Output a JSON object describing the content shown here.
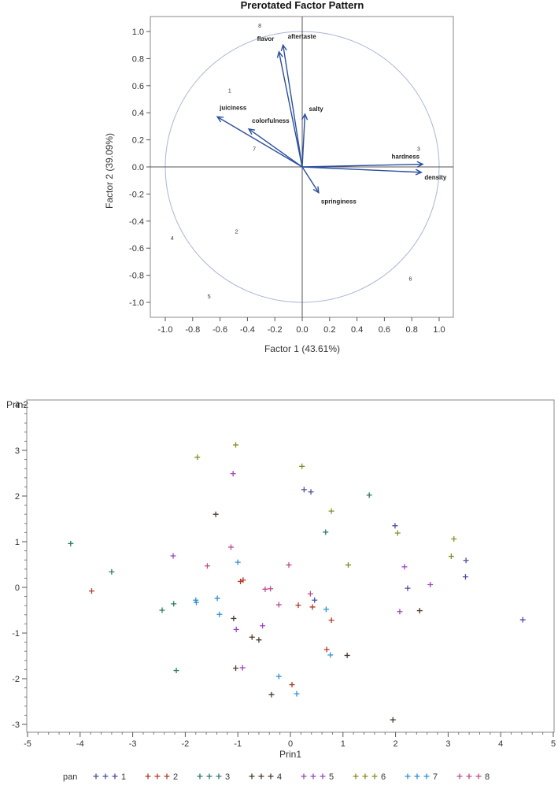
{
  "chart_data": [
    {
      "type": "scatter",
      "title": "Prerotated Factor Pattern",
      "xlabel": "Factor 1 (43.61%)",
      "ylabel": "Factor 2 (39.09%)",
      "xlim": [
        -1.1,
        1.1
      ],
      "ylim": [
        -1.1,
        1.1
      ],
      "xticks": [
        "-1.0",
        "-0.8",
        "-0.6",
        "-0.4",
        "-0.2",
        "0.0",
        "0.2",
        "0.4",
        "0.6",
        "0.8",
        "1.0"
      ],
      "yticks": [
        "1.0",
        "0.8",
        "0.6",
        "0.4",
        "0.2",
        "0.0",
        "-0.2",
        "-0.4",
        "-0.6",
        "-0.8",
        "-1.0"
      ],
      "unit_circle": true,
      "colors": {
        "vector": "#2b4f9e",
        "circle": "#a9b5d6",
        "axis": "#555555"
      },
      "vectors": [
        {
          "label": "aftertaste",
          "x": -0.14,
          "y": 0.9
        },
        {
          "label": "flavor",
          "x": -0.17,
          "y": 0.85
        },
        {
          "label": "salty",
          "x": 0.02,
          "y": 0.39
        },
        {
          "label": "juiciness",
          "x": -0.62,
          "y": 0.37
        },
        {
          "label": "colorfulness",
          "x": -0.39,
          "y": 0.28
        },
        {
          "label": "hardness",
          "x": 0.88,
          "y": 0.02
        },
        {
          "label": "density",
          "x": 0.87,
          "y": -0.04
        },
        {
          "label": "springiness",
          "x": 0.12,
          "y": -0.19
        }
      ],
      "observations": [
        {
          "label": "8",
          "x": -0.31,
          "y": 1.03
        },
        {
          "label": "1",
          "x": -0.53,
          "y": 0.55
        },
        {
          "label": "7",
          "x": -0.35,
          "y": 0.12
        },
        {
          "label": "3",
          "x": 0.85,
          "y": 0.12
        },
        {
          "label": "2",
          "x": -0.48,
          "y": -0.49
        },
        {
          "label": "4",
          "x": -0.95,
          "y": -0.54
        },
        {
          "label": "6",
          "x": 0.79,
          "y": -0.84
        },
        {
          "label": "5",
          "x": -0.68,
          "y": -0.97
        }
      ]
    },
    {
      "type": "scatter",
      "title": "",
      "xlabel": "Prin1",
      "ylabel": "Prin2",
      "xlim": [
        -5,
        5
      ],
      "ylim": [
        -3.1,
        4.1
      ],
      "xticks": [
        "-5",
        "-4",
        "-3",
        "-2",
        "-1",
        "0",
        "1",
        "2",
        "3",
        "4",
        "5"
      ],
      "yticks": [
        "4",
        "3",
        "2",
        "1",
        "0",
        "-1",
        "-2",
        "-3"
      ],
      "marker": "+",
      "legend": {
        "title": "pan",
        "placement": "bottom"
      },
      "series": [
        {
          "name": "1",
          "color": "#4a4fa6",
          "points": [
            [
              0.26,
              2.14
            ],
            [
              0.39,
              2.09
            ],
            [
              1.99,
              1.35
            ],
            [
              3.34,
              0.59
            ],
            [
              3.33,
              0.23
            ],
            [
              2.23,
              -0.02
            ],
            [
              4.42,
              -0.71
            ],
            [
              0.46,
              -0.28
            ]
          ]
        },
        {
          "name": "2",
          "color": "#b23a2a",
          "points": [
            [
              -3.78,
              -0.08
            ],
            [
              -0.95,
              0.13
            ],
            [
              -0.9,
              0.16
            ],
            [
              0.15,
              -0.39
            ],
            [
              0.42,
              -0.43
            ],
            [
              0.78,
              -0.72
            ],
            [
              0.69,
              -1.36
            ],
            [
              0.03,
              -2.13
            ]
          ]
        },
        {
          "name": "3",
          "color": "#2d7b6b",
          "points": [
            [
              -4.18,
              0.96
            ],
            [
              -3.4,
              0.34
            ],
            [
              -2.44,
              -0.5
            ],
            [
              -2.22,
              -0.36
            ],
            [
              -2.17,
              -1.82
            ],
            [
              1.5,
              2.02
            ],
            [
              0.67,
              1.21
            ]
          ]
        },
        {
          "name": "4",
          "color": "#4d3a2a",
          "points": [
            [
              -1.42,
              1.6
            ],
            [
              -1.08,
              -0.68
            ],
            [
              -0.73,
              -1.09
            ],
            [
              -0.6,
              -1.15
            ],
            [
              -1.04,
              -1.77
            ],
            [
              -0.36,
              -2.35
            ],
            [
              1.08,
              -1.49
            ],
            [
              2.46,
              -0.51
            ],
            [
              1.95,
              -2.9
            ]
          ]
        },
        {
          "name": "5",
          "color": "#9b45c2",
          "points": [
            [
              -2.23,
              0.69
            ],
            [
              -1.09,
              2.49
            ],
            [
              -1.03,
              -0.92
            ],
            [
              -0.53,
              -0.84
            ],
            [
              -0.91,
              -1.76
            ],
            [
              2.17,
              0.45
            ],
            [
              2.66,
              0.06
            ],
            [
              2.08,
              -0.53
            ]
          ]
        },
        {
          "name": "6",
          "color": "#8a8c26",
          "points": [
            [
              -1.77,
              2.85
            ],
            [
              -1.04,
              3.12
            ],
            [
              0.22,
              2.65
            ],
            [
              0.78,
              1.67
            ],
            [
              2.04,
              1.19
            ],
            [
              3.11,
              1.06
            ],
            [
              3.06,
              0.68
            ],
            [
              1.1,
              0.49
            ]
          ]
        },
        {
          "name": "7",
          "color": "#2e8fd9",
          "points": [
            [
              -1.8,
              -0.28
            ],
            [
              -1.79,
              -0.33
            ],
            [
              -1.39,
              -0.24
            ],
            [
              -1.35,
              -0.59
            ],
            [
              -1.0,
              0.55
            ],
            [
              0.68,
              -0.48
            ],
            [
              0.76,
              -1.48
            ],
            [
              -0.22,
              -1.95
            ],
            [
              0.12,
              -2.33
            ]
          ]
        },
        {
          "name": "8",
          "color": "#c24a8d",
          "points": [
            [
              -1.13,
              0.88
            ],
            [
              -1.58,
              0.47
            ],
            [
              -0.03,
              0.49
            ],
            [
              -0.48,
              -0.04
            ],
            [
              -0.38,
              -0.03
            ],
            [
              -0.22,
              -0.38
            ],
            [
              0.38,
              -0.14
            ]
          ]
        }
      ]
    }
  ]
}
